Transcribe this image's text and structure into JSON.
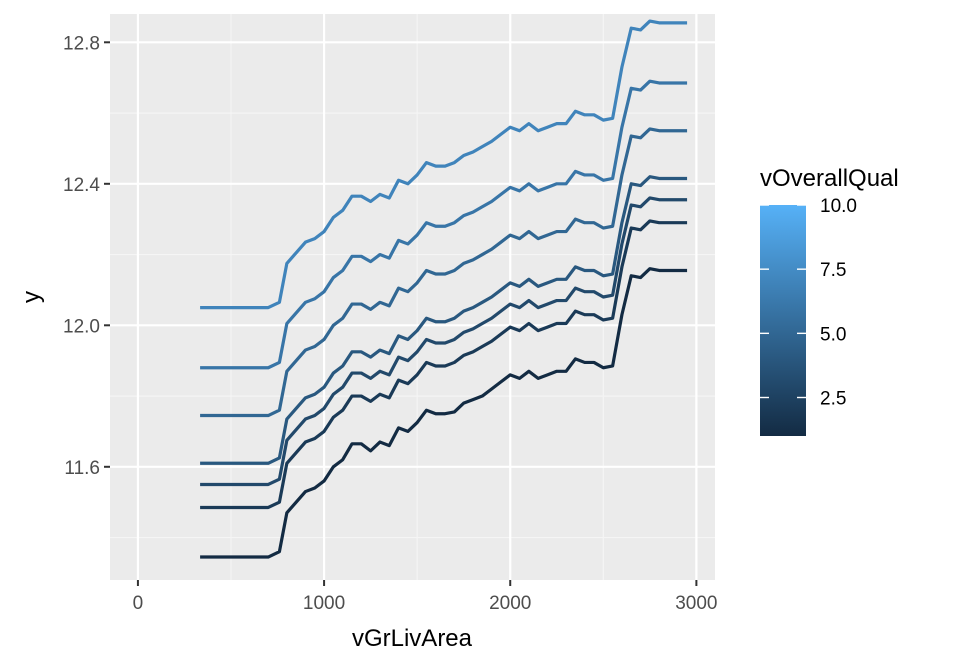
{
  "chart_data": {
    "type": "line",
    "xlabel": "vGrLivArea",
    "ylabel": "y",
    "xlim": [
      -150,
      3100
    ],
    "ylim": [
      11.28,
      12.88
    ],
    "x_ticks": [
      0,
      1000,
      2000,
      3000
    ],
    "x_tick_labels": [
      "0",
      "1000",
      "2000",
      "3000"
    ],
    "y_ticks": [
      11.6,
      12.0,
      12.4,
      12.8
    ],
    "y_tick_labels": [
      "11.6",
      "12.0",
      "12.4",
      "12.8"
    ],
    "grid": true,
    "legend": {
      "title": "vOverallQual",
      "placement": "right",
      "type": "colorbar",
      "range": [
        1,
        10
      ],
      "ticks": [
        2.5,
        5.0,
        7.5,
        10.0
      ],
      "tick_labels": [
        "2.5",
        "5.0",
        "7.5",
        "10.0"
      ],
      "low_color": "#132b43",
      "high_color": "#56b1f7"
    },
    "x": [
      334,
      500,
      700,
      760,
      800,
      850,
      900,
      950,
      1000,
      1050,
      1100,
      1150,
      1200,
      1250,
      1300,
      1350,
      1400,
      1450,
      1500,
      1550,
      1600,
      1650,
      1700,
      1750,
      1800,
      1850,
      1900,
      1950,
      2000,
      2050,
      2100,
      2150,
      2200,
      2250,
      2300,
      2350,
      2400,
      2450,
      2500,
      2550,
      2600,
      2650,
      2700,
      2750,
      2800,
      2850,
      2900,
      2950
    ],
    "series": [
      {
        "quality": 1,
        "values": [
          11.345,
          11.345,
          11.345,
          11.36,
          11.47,
          11.5,
          11.53,
          11.54,
          11.56,
          11.6,
          11.62,
          11.665,
          11.665,
          11.645,
          11.67,
          11.66,
          11.71,
          11.7,
          11.725,
          11.76,
          11.75,
          11.75,
          11.755,
          11.78,
          11.79,
          11.8,
          11.82,
          11.84,
          11.86,
          11.85,
          11.87,
          11.85,
          11.86,
          11.87,
          11.87,
          11.905,
          11.895,
          11.895,
          11.88,
          11.885,
          12.03,
          12.14,
          12.135,
          12.16,
          12.155,
          12.155,
          12.155,
          12.155
        ]
      },
      {
        "quality": 2,
        "values": [
          11.485,
          11.485,
          11.485,
          11.5,
          11.61,
          11.64,
          11.67,
          11.68,
          11.7,
          11.74,
          11.76,
          11.8,
          11.8,
          11.785,
          11.805,
          11.795,
          11.845,
          11.835,
          11.86,
          11.895,
          11.885,
          11.885,
          11.895,
          11.915,
          11.925,
          11.94,
          11.955,
          11.975,
          11.995,
          11.985,
          12.005,
          11.985,
          11.995,
          12.005,
          12.005,
          12.04,
          12.03,
          12.03,
          12.015,
          12.02,
          12.165,
          12.275,
          12.27,
          12.295,
          12.29,
          12.29,
          12.29,
          12.29
        ]
      },
      {
        "quality": 3,
        "values": [
          11.55,
          11.55,
          11.55,
          11.565,
          11.675,
          11.705,
          11.735,
          11.745,
          11.765,
          11.805,
          11.825,
          11.865,
          11.865,
          11.85,
          11.87,
          11.86,
          11.91,
          11.9,
          11.925,
          11.96,
          11.95,
          11.95,
          11.96,
          11.98,
          11.99,
          12.005,
          12.02,
          12.04,
          12.06,
          12.05,
          12.07,
          12.05,
          12.06,
          12.07,
          12.07,
          12.105,
          12.095,
          12.095,
          12.08,
          12.085,
          12.23,
          12.34,
          12.335,
          12.36,
          12.355,
          12.355,
          12.355,
          12.355
        ]
      },
      {
        "quality": 4,
        "values": [
          11.61,
          11.61,
          11.61,
          11.625,
          11.735,
          11.765,
          11.795,
          11.805,
          11.825,
          11.865,
          11.885,
          11.925,
          11.925,
          11.91,
          11.93,
          11.92,
          11.97,
          11.96,
          11.985,
          12.02,
          12.01,
          12.01,
          12.02,
          12.04,
          12.05,
          12.065,
          12.08,
          12.1,
          12.12,
          12.11,
          12.13,
          12.11,
          12.12,
          12.13,
          12.13,
          12.165,
          12.155,
          12.155,
          12.14,
          12.145,
          12.29,
          12.4,
          12.395,
          12.42,
          12.415,
          12.415,
          12.415,
          12.415
        ]
      },
      {
        "quality": 5,
        "values": [
          11.745,
          11.745,
          11.745,
          11.76,
          11.87,
          11.9,
          11.93,
          11.94,
          11.96,
          12.0,
          12.02,
          12.06,
          12.06,
          12.045,
          12.065,
          12.055,
          12.105,
          12.095,
          12.12,
          12.155,
          12.145,
          12.145,
          12.155,
          12.175,
          12.185,
          12.2,
          12.215,
          12.235,
          12.255,
          12.245,
          12.265,
          12.245,
          12.255,
          12.265,
          12.265,
          12.3,
          12.29,
          12.29,
          12.275,
          12.28,
          12.425,
          12.535,
          12.53,
          12.555,
          12.55,
          12.55,
          12.55,
          12.55
        ]
      },
      {
        "quality": 6,
        "values": [
          11.88,
          11.88,
          11.88,
          11.895,
          12.005,
          12.035,
          12.065,
          12.075,
          12.095,
          12.135,
          12.155,
          12.195,
          12.195,
          12.18,
          12.2,
          12.19,
          12.24,
          12.23,
          12.255,
          12.29,
          12.28,
          12.28,
          12.29,
          12.31,
          12.32,
          12.335,
          12.35,
          12.37,
          12.39,
          12.38,
          12.4,
          12.38,
          12.39,
          12.4,
          12.4,
          12.435,
          12.425,
          12.425,
          12.41,
          12.415,
          12.56,
          12.67,
          12.665,
          12.69,
          12.685,
          12.685,
          12.685,
          12.685
        ]
      },
      {
        "quality": 7,
        "values": [
          12.05,
          12.05,
          12.05,
          12.065,
          12.175,
          12.205,
          12.235,
          12.245,
          12.265,
          12.305,
          12.325,
          12.365,
          12.365,
          12.35,
          12.37,
          12.36,
          12.41,
          12.4,
          12.425,
          12.46,
          12.45,
          12.45,
          12.46,
          12.48,
          12.49,
          12.505,
          12.52,
          12.54,
          12.56,
          12.55,
          12.57,
          12.55,
          12.56,
          12.57,
          12.57,
          12.605,
          12.595,
          12.595,
          12.58,
          12.585,
          12.73,
          12.84,
          12.835,
          12.86,
          12.855,
          12.855,
          12.855,
          12.855
        ]
      }
    ]
  }
}
